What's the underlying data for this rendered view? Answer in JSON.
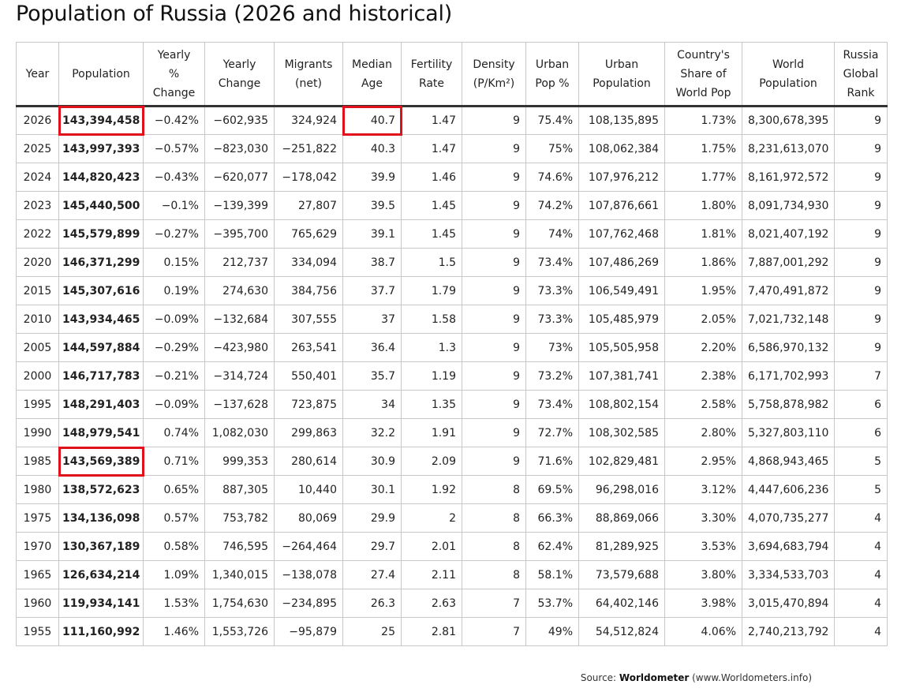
{
  "title": "Population of Russia (2026 and historical)",
  "columns": [
    [
      "Year"
    ],
    [
      "Population"
    ],
    [
      "Yearly",
      "%",
      "Change"
    ],
    [
      "Yearly",
      "Change"
    ],
    [
      "Migrants",
      "(net)"
    ],
    [
      "Median",
      "Age"
    ],
    [
      "Fertility",
      "Rate"
    ],
    [
      "Density",
      "(P/Km²)"
    ],
    [
      "Urban",
      "Pop %"
    ],
    [
      "Urban",
      "Population"
    ],
    [
      "Country's",
      "Share of",
      "World Pop"
    ],
    [
      "World",
      "Population"
    ],
    [
      "Russia",
      "Global",
      "Rank"
    ]
  ],
  "rows": [
    [
      "2026",
      "143,394,458",
      "−0.42%",
      "−602,935",
      "324,924",
      "40.7",
      "1.47",
      "9",
      "75.4%",
      "108,135,895",
      "1.73%",
      "8,300,678,395",
      "9"
    ],
    [
      "2025",
      "143,997,393",
      "−0.57%",
      "−823,030",
      "−251,822",
      "40.3",
      "1.47",
      "9",
      "75%",
      "108,062,384",
      "1.75%",
      "8,231,613,070",
      "9"
    ],
    [
      "2024",
      "144,820,423",
      "−0.43%",
      "−620,077",
      "−178,042",
      "39.9",
      "1.46",
      "9",
      "74.6%",
      "107,976,212",
      "1.77%",
      "8,161,972,572",
      "9"
    ],
    [
      "2023",
      "145,440,500",
      "−0.1%",
      "−139,399",
      "27,807",
      "39.5",
      "1.45",
      "9",
      "74.2%",
      "107,876,661",
      "1.80%",
      "8,091,734,930",
      "9"
    ],
    [
      "2022",
      "145,579,899",
      "−0.27%",
      "−395,700",
      "765,629",
      "39.1",
      "1.45",
      "9",
      "74%",
      "107,762,468",
      "1.81%",
      "8,021,407,192",
      "9"
    ],
    [
      "2020",
      "146,371,299",
      "0.15%",
      "212,737",
      "334,094",
      "38.7",
      "1.5",
      "9",
      "73.4%",
      "107,486,269",
      "1.86%",
      "7,887,001,292",
      "9"
    ],
    [
      "2015",
      "145,307,616",
      "0.19%",
      "274,630",
      "384,756",
      "37.7",
      "1.79",
      "9",
      "73.3%",
      "106,549,491",
      "1.95%",
      "7,470,491,872",
      "9"
    ],
    [
      "2010",
      "143,934,465",
      "−0.09%",
      "−132,684",
      "307,555",
      "37",
      "1.58",
      "9",
      "73.3%",
      "105,485,979",
      "2.05%",
      "7,021,732,148",
      "9"
    ],
    [
      "2005",
      "144,597,884",
      "−0.29%",
      "−423,980",
      "263,541",
      "36.4",
      "1.3",
      "9",
      "73%",
      "105,505,958",
      "2.20%",
      "6,586,970,132",
      "9"
    ],
    [
      "2000",
      "146,717,783",
      "−0.21%",
      "−314,724",
      "550,401",
      "35.7",
      "1.19",
      "9",
      "73.2%",
      "107,381,741",
      "2.38%",
      "6,171,702,993",
      "7"
    ],
    [
      "1995",
      "148,291,403",
      "−0.09%",
      "−137,628",
      "723,875",
      "34",
      "1.35",
      "9",
      "73.4%",
      "108,802,154",
      "2.58%",
      "5,758,878,982",
      "6"
    ],
    [
      "1990",
      "148,979,541",
      "0.74%",
      "1,082,030",
      "299,863",
      "32.2",
      "1.91",
      "9",
      "72.7%",
      "108,302,585",
      "2.80%",
      "5,327,803,110",
      "6"
    ],
    [
      "1985",
      "143,569,389",
      "0.71%",
      "999,353",
      "280,614",
      "30.9",
      "2.09",
      "9",
      "71.6%",
      "102,829,481",
      "2.95%",
      "4,868,943,465",
      "5"
    ],
    [
      "1980",
      "138,572,623",
      "0.65%",
      "887,305",
      "10,440",
      "30.1",
      "1.92",
      "8",
      "69.5%",
      "96,298,016",
      "3.12%",
      "4,447,606,236",
      "5"
    ],
    [
      "1975",
      "134,136,098",
      "0.57%",
      "753,782",
      "80,069",
      "29.9",
      "2",
      "8",
      "66.3%",
      "88,869,066",
      "3.30%",
      "4,070,735,277",
      "4"
    ],
    [
      "1970",
      "130,367,189",
      "0.58%",
      "746,595",
      "−264,464",
      "29.7",
      "2.01",
      "8",
      "62.4%",
      "81,289,925",
      "3.53%",
      "3,694,683,794",
      "4"
    ],
    [
      "1965",
      "126,634,214",
      "1.09%",
      "1,340,015",
      "−138,078",
      "27.4",
      "2.11",
      "8",
      "58.1%",
      "73,579,688",
      "3.80%",
      "3,334,533,703",
      "4"
    ],
    [
      "1960",
      "119,934,141",
      "1.53%",
      "1,754,630",
      "−234,895",
      "26.3",
      "2.63",
      "7",
      "53.7%",
      "64,402,146",
      "3.98%",
      "3,015,470,894",
      "4"
    ],
    [
      "1955",
      "111,160,992",
      "1.46%",
      "1,553,726",
      "−95,879",
      "25",
      "2.81",
      "7",
      "49%",
      "54,512,824",
      "4.06%",
      "2,740,213,792",
      "4"
    ]
  ],
  "highlights": [
    {
      "row": 0,
      "col": 1
    },
    {
      "row": 0,
      "col": 5
    },
    {
      "row": 12,
      "col": 1
    }
  ],
  "highlight_color": "#e0111b",
  "source": {
    "prefix": "Source: ",
    "name": "Worldometer",
    "suffix": " (www.Worldometers.info)"
  }
}
